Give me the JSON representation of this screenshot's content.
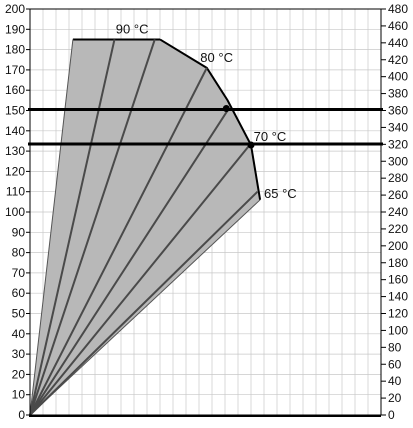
{
  "chart_data": {
    "type": "area",
    "title": "",
    "xlabel": "",
    "ylabel": "",
    "left_axis": {
      "ylim": [
        0,
        200
      ],
      "ticks": [
        "0",
        "10",
        "20",
        "30",
        "40",
        "50",
        "60",
        "70",
        "80",
        "90",
        "100",
        "110",
        "120",
        "130",
        "140",
        "150",
        "160",
        "170",
        "180",
        "190",
        "200"
      ]
    },
    "right_axis": {
      "ylim": [
        0,
        480
      ],
      "ticks": [
        "0",
        "20",
        "40",
        "60",
        "80",
        "100",
        "120",
        "140",
        "160",
        "180",
        "200",
        "220",
        "240",
        "260",
        "280",
        "300",
        "320",
        "340",
        "360",
        "380",
        "400",
        "420",
        "440",
        "460",
        "480"
      ]
    },
    "grid": true,
    "x_grid_divisions": 27,
    "region": {
      "fill_color": "#b8b8b8",
      "boundary": [
        {
          "x": 0,
          "y": 0
        },
        {
          "x": 3.3,
          "y": 185
        },
        {
          "x": 10.0,
          "y": 185
        },
        {
          "x": 13.6,
          "y": 171
        },
        {
          "x": 15.2,
          "y": 155
        },
        {
          "x": 17.0,
          "y": 133
        },
        {
          "x": 17.7,
          "y": 106
        }
      ]
    },
    "rays": [
      {
        "x": 6.5,
        "y": 185
      },
      {
        "x": 9.6,
        "y": 185
      },
      {
        "x": 13.6,
        "y": 171
      },
      {
        "x": 15.3,
        "y": 151
      },
      {
        "x": 16.9,
        "y": 133
      },
      {
        "x": 17.5,
        "y": 110
      }
    ],
    "horizontal_lines": [
      {
        "y": 150.5,
        "color": "#000000"
      },
      {
        "y": 133.5,
        "color": "#000000"
      }
    ],
    "markers": [
      {
        "x": 15.1,
        "y": 151
      },
      {
        "x": 17.0,
        "y": 133
      }
    ],
    "annotations": [
      {
        "text": "90 °C",
        "x": 6.6,
        "y": 188
      },
      {
        "text": "80 °C",
        "x": 13.1,
        "y": 174
      },
      {
        "text": "70 °C",
        "x": 17.2,
        "y": 135
      },
      {
        "text": "65 °C",
        "x": 18.0,
        "y": 107
      }
    ]
  }
}
